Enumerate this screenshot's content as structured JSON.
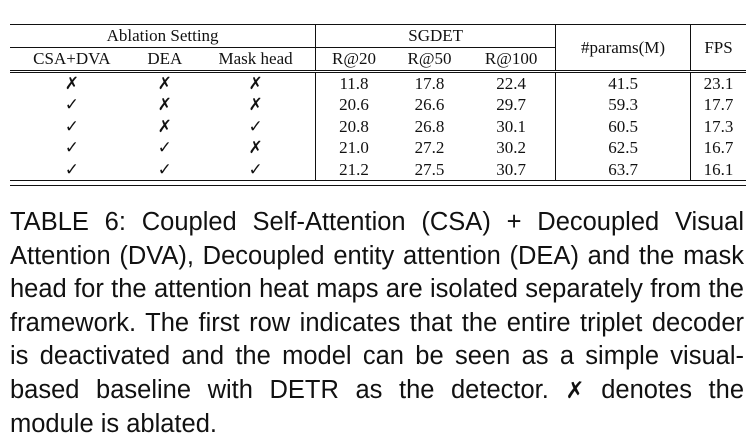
{
  "table": {
    "group_headers": {
      "ablation": "Ablation Setting",
      "sgdet": "SGDET",
      "params": "#params(M)",
      "fps": "FPS"
    },
    "sub_headers": [
      "CSA+DVA",
      "DEA",
      "Mask head",
      "R@20",
      "R@50",
      "R@100"
    ],
    "marks": {
      "check": "✓",
      "cross": "✗"
    },
    "rows": [
      {
        "csa_dva": "✗",
        "dea": "✗",
        "mask": "✗",
        "r20": "11.8",
        "r50": "17.8",
        "r100": "22.4",
        "params": "41.5",
        "fps": "23.1"
      },
      {
        "csa_dva": "✓",
        "dea": "✗",
        "mask": "✗",
        "r20": "20.6",
        "r50": "26.6",
        "r100": "29.7",
        "params": "59.3",
        "fps": "17.7"
      },
      {
        "csa_dva": "✓",
        "dea": "✗",
        "mask": "✓",
        "r20": "20.8",
        "r50": "26.8",
        "r100": "30.1",
        "params": "60.5",
        "fps": "17.3"
      },
      {
        "csa_dva": "✓",
        "dea": "✓",
        "mask": "✗",
        "r20": "21.0",
        "r50": "27.2",
        "r100": "30.2",
        "params": "62.5",
        "fps": "16.7"
      },
      {
        "csa_dva": "✓",
        "dea": "✓",
        "mask": "✓",
        "r20": "21.2",
        "r50": "27.5",
        "r100": "30.7",
        "params": "63.7",
        "fps": "16.1"
      }
    ]
  },
  "caption": {
    "part1": "TABLE 6: Coupled Self-Attention (CSA) + Decoupled Visual Attention (DVA), Decoupled entity attention (DEA) and the mask head for the attention heat maps are isolated separately from the framework. The first row indicates that the entire triplet decoder is deactivated and the model can be seen as a simple visual-based baseline with DETR as the detector.",
    "mark": "✗",
    "part2": "denotes the module is ablated."
  }
}
